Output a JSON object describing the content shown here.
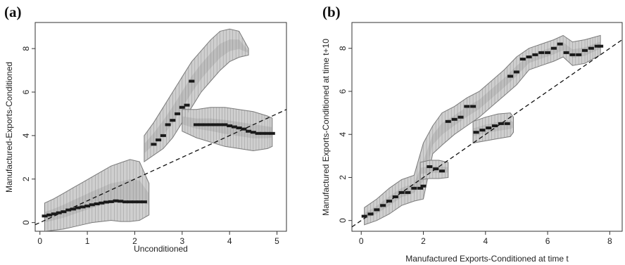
{
  "chart_data": [
    {
      "panel_label": "(a)",
      "type": "scatter",
      "title": "",
      "xlabel": "Unconditioned",
      "ylabel": "Manufactured-Exports-Conditioned",
      "xlim": [
        -0.1,
        5.2
      ],
      "ylim": [
        -0.4,
        9.2
      ],
      "xticks": [
        0,
        1,
        2,
        3,
        4,
        5
      ],
      "yticks": [
        0,
        2,
        4,
        6,
        8
      ],
      "grid": false,
      "reference_line": {
        "style": "dashed",
        "slope": 1,
        "intercept": 0
      },
      "series": [
        {
          "values": [
            {
              "x": 0.1,
              "y": 0.3
            },
            {
              "x": 0.2,
              "y": 0.35
            },
            {
              "x": 0.3,
              "y": 0.4
            },
            {
              "x": 0.4,
              "y": 0.45
            },
            {
              "x": 0.5,
              "y": 0.5
            },
            {
              "x": 0.6,
              "y": 0.58
            },
            {
              "x": 0.7,
              "y": 0.62
            },
            {
              "x": 0.8,
              "y": 0.68
            },
            {
              "x": 0.9,
              "y": 0.72
            },
            {
              "x": 1.0,
              "y": 0.76
            },
            {
              "x": 1.1,
              "y": 0.82
            },
            {
              "x": 1.2,
              "y": 0.86
            },
            {
              "x": 1.3,
              "y": 0.9
            },
            {
              "x": 1.4,
              "y": 0.94
            },
            {
              "x": 1.5,
              "y": 0.96
            },
            {
              "x": 1.6,
              "y": 1.0
            },
            {
              "x": 1.7,
              "y": 0.98
            },
            {
              "x": 1.8,
              "y": 0.95
            },
            {
              "x": 1.9,
              "y": 0.95
            },
            {
              "x": 2.0,
              "y": 0.95
            },
            {
              "x": 2.1,
              "y": 0.95
            },
            {
              "x": 2.2,
              "y": 0.95
            },
            {
              "x": 2.4,
              "y": 3.6
            },
            {
              "x": 2.5,
              "y": 3.8
            },
            {
              "x": 2.6,
              "y": 4.0
            },
            {
              "x": 2.7,
              "y": 4.5
            },
            {
              "x": 2.8,
              "y": 4.7
            },
            {
              "x": 2.9,
              "y": 5.0
            },
            {
              "x": 3.0,
              "y": 5.3
            },
            {
              "x": 3.1,
              "y": 5.4
            },
            {
              "x": 3.2,
              "y": 6.5
            },
            {
              "x": 3.3,
              "y": 4.5
            },
            {
              "x": 3.4,
              "y": 4.5
            },
            {
              "x": 3.5,
              "y": 4.5
            },
            {
              "x": 3.6,
              "y": 4.5
            },
            {
              "x": 3.7,
              "y": 4.5
            },
            {
              "x": 3.8,
              "y": 4.5
            },
            {
              "x": 3.9,
              "y": 4.5
            },
            {
              "x": 4.0,
              "y": 4.45
            },
            {
              "x": 4.1,
              "y": 4.4
            },
            {
              "x": 4.2,
              "y": 4.35
            },
            {
              "x": 4.3,
              "y": 4.3
            },
            {
              "x": 4.4,
              "y": 4.2
            },
            {
              "x": 4.5,
              "y": 4.15
            },
            {
              "x": 4.6,
              "y": 4.1
            },
            {
              "x": 4.7,
              "y": 4.1
            },
            {
              "x": 4.8,
              "y": 4.1
            },
            {
              "x": 4.9,
              "y": 4.1
            }
          ]
        }
      ],
      "bands": [
        {
          "x": [
            0.1,
            0.3,
            0.5,
            0.7,
            0.9,
            1.1,
            1.3,
            1.5,
            1.7,
            1.9,
            2.1,
            2.3
          ],
          "low": [
            -0.4,
            -0.35,
            -0.3,
            -0.2,
            -0.1,
            0.0,
            0.05,
            0.1,
            0.05,
            0.05,
            0.1,
            0.35
          ],
          "high": [
            0.9,
            1.1,
            1.35,
            1.6,
            1.85,
            2.1,
            2.35,
            2.6,
            2.75,
            2.9,
            2.8,
            1.8
          ]
        },
        {
          "x": [
            2.2,
            2.4,
            2.6,
            2.8,
            3.0,
            3.2,
            3.4,
            3.6,
            3.8,
            4.0,
            4.2,
            4.4
          ],
          "low": [
            2.8,
            3.1,
            3.4,
            3.9,
            4.6,
            5.3,
            6.0,
            6.5,
            7.0,
            7.4,
            7.6,
            7.7
          ],
          "high": [
            4.0,
            4.6,
            5.3,
            6.0,
            6.7,
            7.4,
            7.9,
            8.4,
            8.8,
            8.9,
            8.8,
            8.0
          ]
        },
        {
          "x": [
            3.0,
            3.3,
            3.6,
            3.9,
            4.2,
            4.5,
            4.8,
            4.9
          ],
          "low": [
            4.2,
            3.9,
            3.7,
            3.5,
            3.4,
            3.3,
            3.4,
            3.5
          ],
          "high": [
            5.2,
            5.2,
            5.3,
            5.3,
            5.2,
            5.1,
            4.9,
            4.8
          ]
        }
      ]
    },
    {
      "panel_label": "(b)",
      "type": "scatter",
      "title": "",
      "xlabel": "Manufactured Exports-Conditioned at time t",
      "ylabel": "Manufactured Exports-Conditioned at time t+10",
      "xlim": [
        -0.3,
        8.4
      ],
      "ylim": [
        -0.5,
        9.2
      ],
      "xticks": [
        0,
        2,
        4,
        6,
        8
      ],
      "yticks": [
        0,
        2,
        4,
        6,
        8
      ],
      "grid": false,
      "reference_line": {
        "style": "dashed",
        "slope": 1,
        "intercept": 0
      },
      "series": [
        {
          "values": [
            {
              "x": 0.1,
              "y": 0.2
            },
            {
              "x": 0.3,
              "y": 0.3
            },
            {
              "x": 0.5,
              "y": 0.5
            },
            {
              "x": 0.7,
              "y": 0.7
            },
            {
              "x": 0.9,
              "y": 0.9
            },
            {
              "x": 1.1,
              "y": 1.1
            },
            {
              "x": 1.3,
              "y": 1.3
            },
            {
              "x": 1.5,
              "y": 1.3
            },
            {
              "x": 1.7,
              "y": 1.5
            },
            {
              "x": 1.9,
              "y": 1.5
            },
            {
              "x": 2.0,
              "y": 1.6
            },
            {
              "x": 2.2,
              "y": 2.5
            },
            {
              "x": 2.4,
              "y": 2.4
            },
            {
              "x": 2.6,
              "y": 2.3
            },
            {
              "x": 2.8,
              "y": 4.6
            },
            {
              "x": 3.0,
              "y": 4.7
            },
            {
              "x": 3.2,
              "y": 4.8
            },
            {
              "x": 3.4,
              "y": 5.3
            },
            {
              "x": 3.6,
              "y": 5.3
            },
            {
              "x": 3.7,
              "y": 4.1
            },
            {
              "x": 3.9,
              "y": 4.2
            },
            {
              "x": 4.1,
              "y": 4.3
            },
            {
              "x": 4.3,
              "y": 4.4
            },
            {
              "x": 4.5,
              "y": 4.5
            },
            {
              "x": 4.7,
              "y": 4.5
            },
            {
              "x": 4.8,
              "y": 6.7
            },
            {
              "x": 5.0,
              "y": 6.9
            },
            {
              "x": 5.2,
              "y": 7.5
            },
            {
              "x": 5.4,
              "y": 7.6
            },
            {
              "x": 5.6,
              "y": 7.7
            },
            {
              "x": 5.8,
              "y": 7.8
            },
            {
              "x": 6.0,
              "y": 7.8
            },
            {
              "x": 6.2,
              "y": 8.0
            },
            {
              "x": 6.4,
              "y": 8.2
            },
            {
              "x": 6.6,
              "y": 7.8
            },
            {
              "x": 6.8,
              "y": 7.7
            },
            {
              "x": 7.0,
              "y": 7.7
            },
            {
              "x": 7.2,
              "y": 7.9
            },
            {
              "x": 7.4,
              "y": 8.0
            },
            {
              "x": 7.6,
              "y": 8.1
            },
            {
              "x": 7.7,
              "y": 8.1
            }
          ]
        }
      ],
      "bands": [
        {
          "x": [
            0.1,
            0.5,
            0.9,
            1.3,
            1.7,
            2.0,
            2.3,
            2.6,
            3.0,
            3.4,
            3.8,
            4.2,
            4.6,
            5.0,
            5.4,
            5.8,
            6.2,
            6.5,
            6.8,
            7.2,
            7.7
          ],
          "low": [
            -0.2,
            0.0,
            0.3,
            0.7,
            0.9,
            1.0,
            3.1,
            3.5,
            4.0,
            4.4,
            4.8,
            5.3,
            5.8,
            6.3,
            7.0,
            7.2,
            7.4,
            7.6,
            7.2,
            7.3,
            7.7
          ],
          "high": [
            0.6,
            1.0,
            1.5,
            1.9,
            2.1,
            3.6,
            4.4,
            5.0,
            5.3,
            5.7,
            6.0,
            6.5,
            7.0,
            7.6,
            8.0,
            8.2,
            8.4,
            8.6,
            8.3,
            8.4,
            8.6
          ]
        },
        {
          "x": [
            1.9,
            2.2,
            2.5,
            2.8
          ],
          "low": [
            1.9,
            1.95,
            1.95,
            2.0
          ],
          "high": [
            2.7,
            2.8,
            2.8,
            2.7
          ]
        },
        {
          "x": [
            3.6,
            4.0,
            4.4,
            4.8,
            4.9
          ],
          "low": [
            3.6,
            3.7,
            3.8,
            3.9,
            4.1
          ],
          "high": [
            4.6,
            4.8,
            4.95,
            5.0,
            4.8
          ]
        }
      ]
    }
  ],
  "colors": {
    "band_fill": "#cfcfcf",
    "band_dark": "#9a9a9a",
    "band_stroke": "#7a7a7a",
    "points": "#1a1a1a",
    "axis": "#333333"
  }
}
